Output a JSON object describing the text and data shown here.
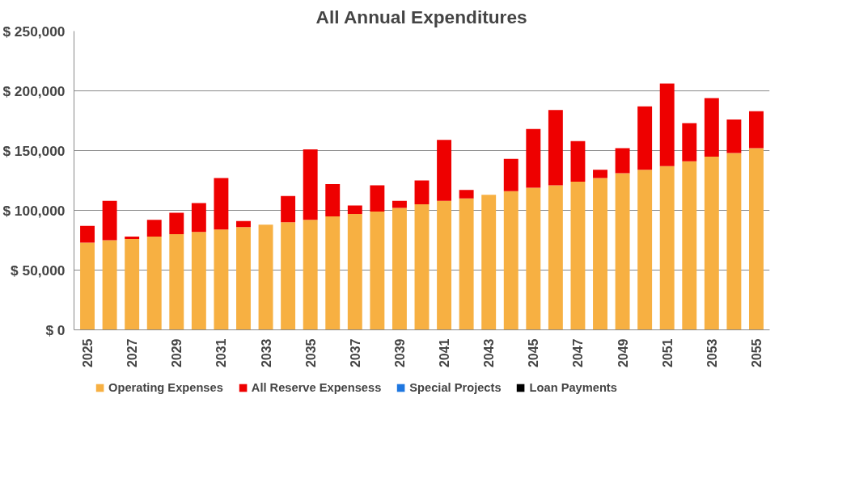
{
  "chart_data": {
    "type": "bar",
    "title": "All Annual Expenditures",
    "stacked": true,
    "grid": "y",
    "legend": "bottom",
    "categories": [
      "2025",
      null,
      "2027",
      null,
      "2029",
      null,
      "2031",
      null,
      "2033",
      null,
      "2035",
      null,
      "2037",
      null,
      "2039",
      null,
      "2041",
      null,
      "2043",
      null,
      "2045",
      null,
      "2047",
      null,
      "2049",
      null,
      "2051",
      null,
      "2053",
      null,
      "2055"
    ],
    "ylim": [
      0,
      250000
    ],
    "yticks": [
      {
        "value": 0,
        "label": "$ 0"
      },
      {
        "value": 50000,
        "label": "$ 50,000"
      },
      {
        "value": 100000,
        "label": "$ 100,000"
      },
      {
        "value": 150000,
        "label": "$ 150,000"
      },
      {
        "value": 200000,
        "label": "$ 200,000"
      },
      {
        "value": 250000,
        "label": "$ 250,000"
      }
    ],
    "series": [
      {
        "name": "Operating Expenses",
        "color": "#f7b042",
        "values": [
          73000,
          75000,
          76000,
          78000,
          80000,
          82000,
          84000,
          86000,
          88000,
          90000,
          92000,
          95000,
          97000,
          99000,
          102000,
          105000,
          108000,
          110000,
          113000,
          116000,
          119000,
          121000,
          124000,
          127000,
          131000,
          134000,
          137000,
          141000,
          145000,
          148000,
          152000
        ]
      },
      {
        "name": "All Reserve Expensess",
        "color": "#ee0000",
        "values": [
          14000,
          33000,
          2000,
          14000,
          18000,
          24000,
          43000,
          5000,
          0,
          22000,
          59000,
          27000,
          7000,
          22000,
          6000,
          20000,
          51000,
          7000,
          0,
          27000,
          49000,
          63000,
          34000,
          7000,
          21000,
          53000,
          69000,
          32000,
          49000,
          28000,
          31000
        ]
      },
      {
        "name": "Special Projects",
        "color": "#1f77e0",
        "values": [
          0,
          0,
          0,
          0,
          0,
          0,
          0,
          0,
          0,
          0,
          0,
          0,
          0,
          0,
          0,
          0,
          0,
          0,
          0,
          0,
          0,
          0,
          0,
          0,
          0,
          0,
          0,
          0,
          0,
          0,
          0
        ]
      },
      {
        "name": "Loan Payments",
        "color": "#000000",
        "values": [
          0,
          0,
          0,
          0,
          0,
          0,
          0,
          0,
          0,
          0,
          0,
          0,
          0,
          0,
          0,
          0,
          0,
          0,
          0,
          0,
          0,
          0,
          0,
          0,
          0,
          0,
          0,
          0,
          0,
          0,
          0
        ]
      }
    ]
  }
}
